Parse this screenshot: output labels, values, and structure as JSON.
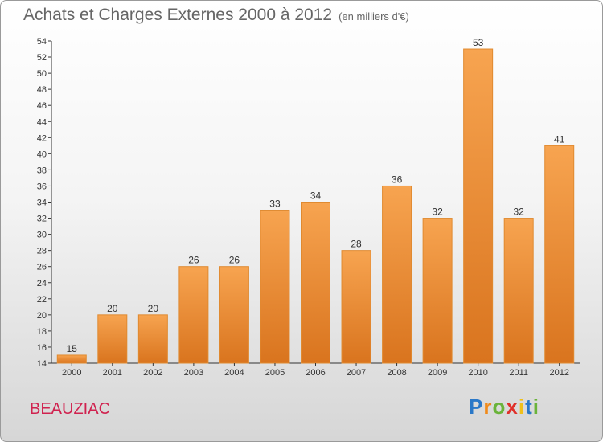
{
  "title": "Achats et Charges Externes 2000 à 2012",
  "unit_label": "(en milliers d'€)",
  "commune": "BEAUZIAC",
  "logo": {
    "letters": [
      "P",
      "r",
      "o",
      "x",
      "i",
      "t",
      "i"
    ],
    "colors": [
      "#2a78c8",
      "#f08a1a",
      "#6ab33a",
      "#e0302a",
      "#f0c01a",
      "#2a78c8",
      "#6ab33a"
    ]
  },
  "colors": {
    "bar_light": "#f7a450",
    "bar_dark": "#d9741e",
    "bar_stroke": "#e08a30"
  },
  "chart_data": {
    "type": "bar",
    "title": "Achats et Charges Externes 2000 à 2012",
    "xlabel": "",
    "ylabel": "",
    "categories": [
      "2000",
      "2001",
      "2002",
      "2003",
      "2004",
      "2005",
      "2006",
      "2007",
      "2008",
      "2009",
      "2010",
      "2011",
      "2012"
    ],
    "values": [
      15,
      20,
      20,
      26,
      26,
      33,
      34,
      28,
      36,
      32,
      53,
      32,
      41
    ],
    "ylim": [
      14,
      54
    ],
    "yticks": [
      14,
      16,
      18,
      20,
      22,
      24,
      26,
      28,
      30,
      32,
      34,
      36,
      38,
      40,
      42,
      44,
      46,
      48,
      50,
      52,
      54
    ],
    "grid": false,
    "legend": "none"
  }
}
